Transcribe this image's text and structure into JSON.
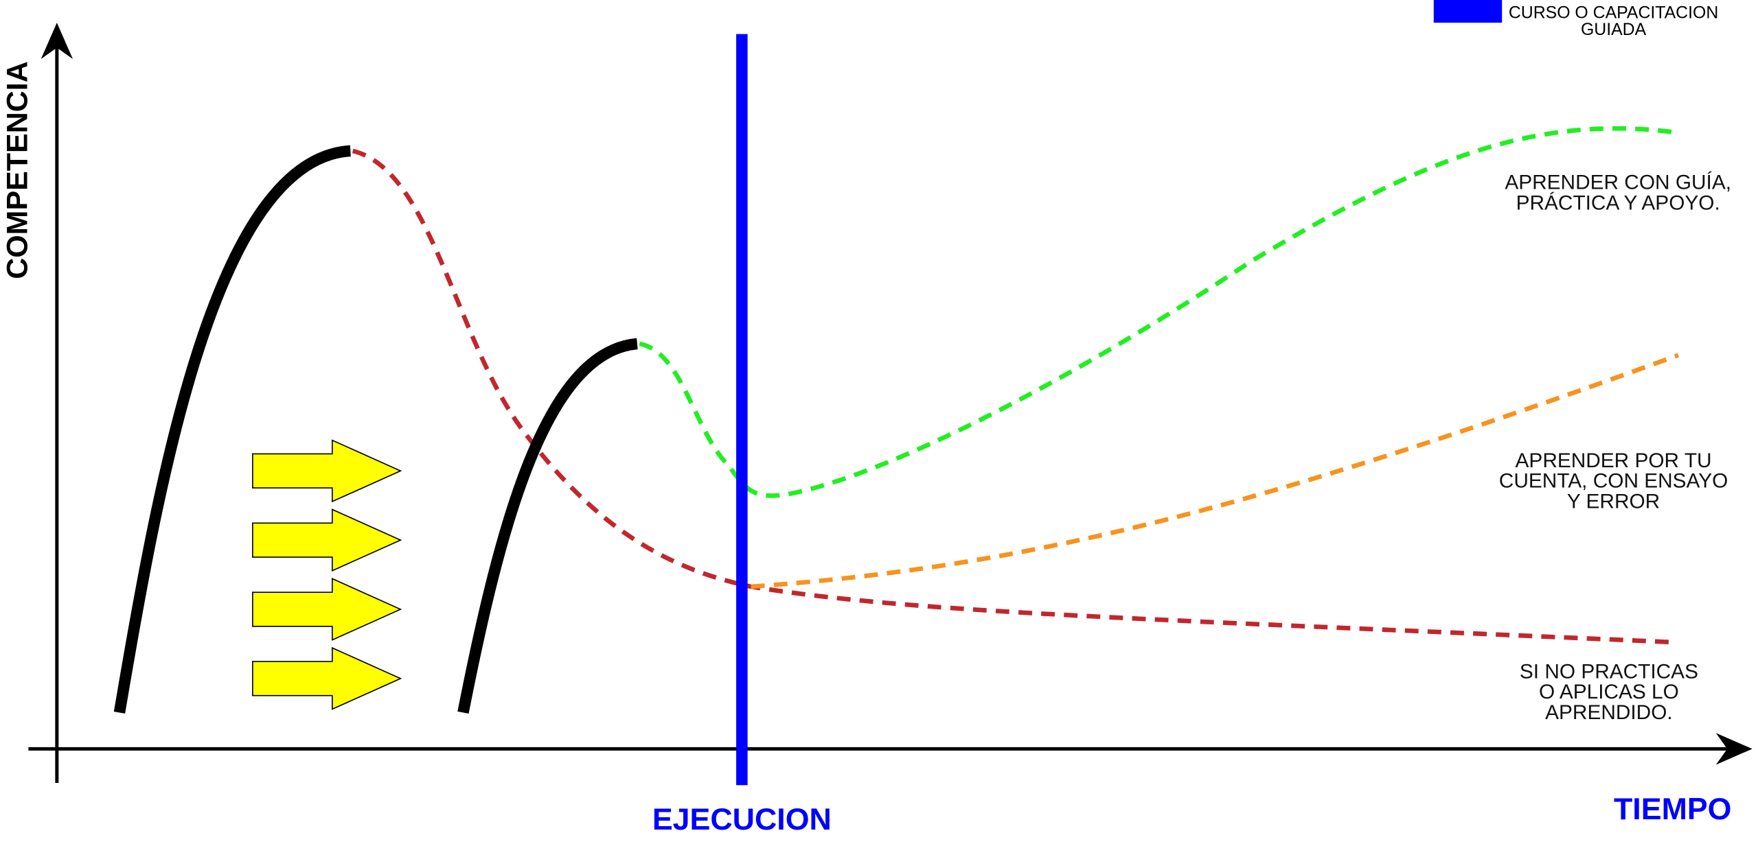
{
  "y_axis_label": "COMPETENCIA",
  "x_axis_label": "TIEMPO",
  "marker_label": "EJECUCION",
  "legend": {
    "label_lines": [
      "CURSO O CAPACITACION",
      "GUIADA"
    ]
  },
  "curve_labels": [
    {
      "lines": [
        "APRENDER CON GUÍA,",
        "PRÁCTICA Y APOYO."
      ]
    },
    {
      "lines": [
        "APRENDER POR TU",
        "CUENTA, CON ENSAYO",
        "Y ERROR"
      ]
    },
    {
      "lines": [
        "SI NO PRACTICAS",
        "O APLICAS LO",
        "APRENDIDO."
      ]
    }
  ]
}
